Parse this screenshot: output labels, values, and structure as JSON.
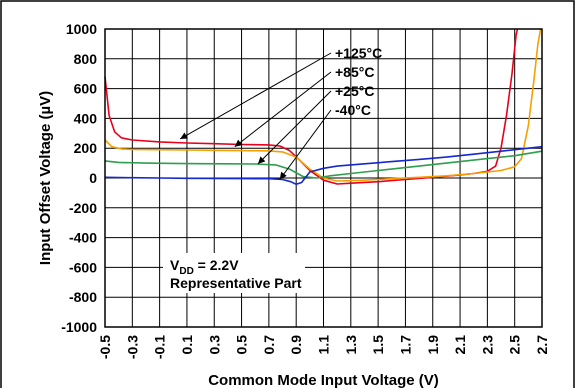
{
  "chart_data": {
    "type": "line",
    "title": "",
    "xlabel": "Common Mode Input Voltage (V)",
    "ylabel": "Input Offset Voltage (µV)",
    "xlim": [
      -0.5,
      2.7
    ],
    "ylim": [
      -1000,
      1000
    ],
    "x_ticks": [
      "-0.5",
      "-0.3",
      "-0.1",
      "0.1",
      "0.3",
      "0.5",
      "0.7",
      "0.9",
      "1.1",
      "1.3",
      "1.5",
      "1.7",
      "1.9",
      "2.1",
      "2.3",
      "2.5",
      "2.7"
    ],
    "y_ticks": [
      "1000",
      "800",
      "600",
      "400",
      "200",
      "0",
      "-200",
      "-400",
      "-600",
      "-800",
      "-1000"
    ],
    "grid": true,
    "series": [
      {
        "name": "+125°C",
        "color": "#e8001c",
        "points": [
          [
            -0.5,
            680
          ],
          [
            -0.47,
            420
          ],
          [
            -0.43,
            310
          ],
          [
            -0.38,
            270
          ],
          [
            -0.3,
            255
          ],
          [
            -0.1,
            242
          ],
          [
            0.1,
            235
          ],
          [
            0.3,
            230
          ],
          [
            0.5,
            225
          ],
          [
            0.7,
            222
          ],
          [
            0.78,
            215
          ],
          [
            0.85,
            185
          ],
          [
            0.92,
            125
          ],
          [
            1.0,
            50
          ],
          [
            1.1,
            -15
          ],
          [
            1.2,
            -40
          ],
          [
            1.3,
            -35
          ],
          [
            1.5,
            -25
          ],
          [
            1.7,
            -10
          ],
          [
            1.9,
            5
          ],
          [
            2.1,
            20
          ],
          [
            2.2,
            30
          ],
          [
            2.3,
            45
          ],
          [
            2.36,
            80
          ],
          [
            2.4,
            200
          ],
          [
            2.44,
            420
          ],
          [
            2.48,
            700
          ],
          [
            2.51,
            960
          ],
          [
            2.52,
            1000
          ]
        ]
      },
      {
        "name": "+85°C",
        "color": "#f5a000",
        "points": [
          [
            -0.5,
            255
          ],
          [
            -0.45,
            210
          ],
          [
            -0.38,
            195
          ],
          [
            -0.3,
            192
          ],
          [
            -0.1,
            190
          ],
          [
            0.1,
            188
          ],
          [
            0.3,
            186
          ],
          [
            0.5,
            184
          ],
          [
            0.7,
            182
          ],
          [
            0.8,
            175
          ],
          [
            0.9,
            140
          ],
          [
            1.0,
            60
          ],
          [
            1.1,
            0
          ],
          [
            1.2,
            -20
          ],
          [
            1.4,
            -15
          ],
          [
            1.6,
            -5
          ],
          [
            1.8,
            5
          ],
          [
            2.0,
            15
          ],
          [
            2.2,
            30
          ],
          [
            2.4,
            50
          ],
          [
            2.5,
            75
          ],
          [
            2.55,
            130
          ],
          [
            2.6,
            350
          ],
          [
            2.64,
            650
          ],
          [
            2.67,
            900
          ],
          [
            2.69,
            1000
          ]
        ]
      },
      {
        "name": "+25°C",
        "color": "#2e9e4e",
        "points": [
          [
            -0.5,
            115
          ],
          [
            -0.4,
            105
          ],
          [
            -0.2,
            100
          ],
          [
            0.0,
            98
          ],
          [
            0.2,
            96
          ],
          [
            0.4,
            95
          ],
          [
            0.6,
            94
          ],
          [
            0.75,
            88
          ],
          [
            0.85,
            60
          ],
          [
            0.95,
            10
          ],
          [
            1.05,
            0
          ],
          [
            1.15,
            15
          ],
          [
            1.3,
            30
          ],
          [
            1.5,
            50
          ],
          [
            1.7,
            70
          ],
          [
            1.9,
            90
          ],
          [
            2.1,
            110
          ],
          [
            2.3,
            130
          ],
          [
            2.5,
            150
          ],
          [
            2.6,
            165
          ],
          [
            2.7,
            180
          ]
        ]
      },
      {
        "name": "-40°C",
        "color": "#1428d2",
        "points": [
          [
            -0.5,
            5
          ],
          [
            -0.3,
            2
          ],
          [
            -0.1,
            0
          ],
          [
            0.1,
            -2
          ],
          [
            0.3,
            -3
          ],
          [
            0.5,
            -4
          ],
          [
            0.7,
            -5
          ],
          [
            0.8,
            -10
          ],
          [
            0.86,
            -25
          ],
          [
            0.9,
            -42
          ],
          [
            0.94,
            -30
          ],
          [
            1.0,
            40
          ],
          [
            1.1,
            65
          ],
          [
            1.2,
            80
          ],
          [
            1.4,
            95
          ],
          [
            1.6,
            110
          ],
          [
            1.8,
            125
          ],
          [
            2.0,
            140
          ],
          [
            2.2,
            160
          ],
          [
            2.4,
            180
          ],
          [
            2.6,
            200
          ],
          [
            2.7,
            210
          ]
        ]
      }
    ],
    "legend_labels": [
      "+125°C",
      "+85°C",
      "+25°C",
      "-40°C"
    ],
    "annotation": {
      "line1_main": "V",
      "line1_sub": "DD",
      "line1_rest": " = 2.2V",
      "line2": "Representative Part"
    }
  }
}
